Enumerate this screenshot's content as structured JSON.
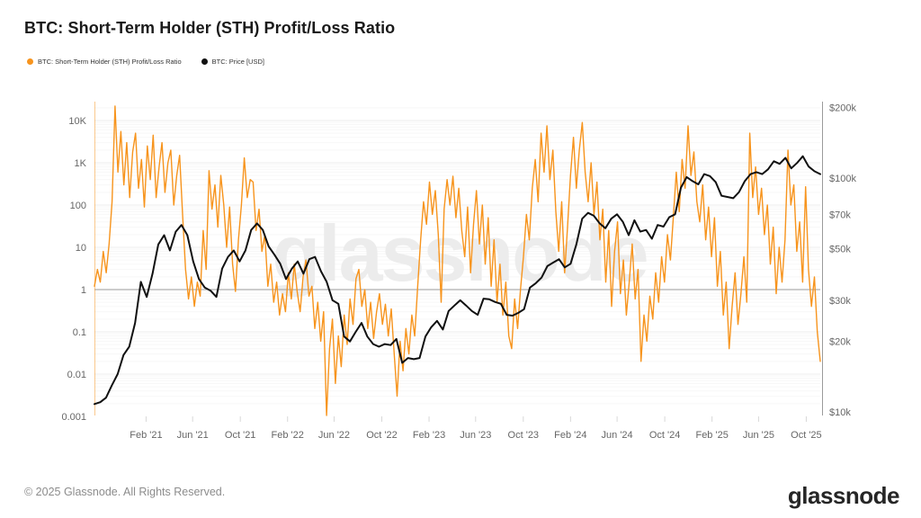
{
  "title": "BTC: Short-Term Holder (STH) Profit/Loss Ratio",
  "watermark": "glassnode",
  "legend": [
    {
      "label": "BTC: Short-Term Holder (STH) Profit/Loss Ratio",
      "color": "#f7941d"
    },
    {
      "label": "BTC: Price [USD]",
      "color": "#111111"
    }
  ],
  "footer": {
    "copyright": "© 2025 Glassnode. All Rights Reserved.",
    "logo": "glassnode"
  },
  "colors": {
    "accent": "#f7941d",
    "price": "#111111",
    "axis_text": "#666666",
    "grid_major": "#ececec",
    "grid_minor": "#f7f7f7",
    "reference": "#9a9a9a",
    "right_axis_line": "#9b9b9b",
    "x_tick_mark": "#d8d8d8",
    "watermark": "#ececec"
  },
  "chart_data": {
    "type": "line",
    "title": "BTC: Short-Term Holder (STH) Profit/Loss Ratio",
    "x_unit": "decimal_year",
    "x_range": [
      2020.72,
      2025.85
    ],
    "grid": "horizontal-log",
    "legend_position": "top-left",
    "x_ticks": [
      {
        "t": 2021.085,
        "label": "Feb '21"
      },
      {
        "t": 2021.414,
        "label": "Jun '21"
      },
      {
        "t": 2021.751,
        "label": "Oct '21"
      },
      {
        "t": 2022.085,
        "label": "Feb '22"
      },
      {
        "t": 2022.414,
        "label": "Jun '22"
      },
      {
        "t": 2022.751,
        "label": "Oct '22"
      },
      {
        "t": 2023.085,
        "label": "Feb '23"
      },
      {
        "t": 2023.414,
        "label": "Jun '23"
      },
      {
        "t": 2023.751,
        "label": "Oct '23"
      },
      {
        "t": 2024.085,
        "label": "Feb '24"
      },
      {
        "t": 2024.414,
        "label": "Jun '24"
      },
      {
        "t": 2024.751,
        "label": "Oct '24"
      },
      {
        "t": 2025.085,
        "label": "Feb '25"
      },
      {
        "t": 2025.414,
        "label": "Jun '25"
      },
      {
        "t": 2025.751,
        "label": "Oct '25"
      }
    ],
    "left_axis": {
      "scale": "log",
      "ylim": [
        0.00105,
        27980
      ],
      "ticks": [
        {
          "v": 10000,
          "label": "10K"
        },
        {
          "v": 1000,
          "label": "1K"
        },
        {
          "v": 100,
          "label": "100"
        },
        {
          "v": 10,
          "label": "10"
        },
        {
          "v": 1,
          "label": "1"
        },
        {
          "v": 0.1,
          "label": "0.1"
        },
        {
          "v": 0.01,
          "label": "0.01"
        },
        {
          "v": 0.001,
          "label": "0.001"
        }
      ]
    },
    "right_axis": {
      "scale": "log",
      "unit": "USD thousands",
      "ylim": [
        9.65,
        212.3
      ],
      "ticks": [
        {
          "v": 200,
          "label": "$200k"
        },
        {
          "v": 100,
          "label": "$100k"
        },
        {
          "v": 70,
          "label": "$70k"
        },
        {
          "v": 50,
          "label": "$50k"
        },
        {
          "v": 30,
          "label": "$30k"
        },
        {
          "v": 20,
          "label": "$20k"
        },
        {
          "v": 10,
          "label": "$10k"
        }
      ]
    },
    "reference_line": {
      "axis": "left",
      "value": 1
    },
    "series": [
      {
        "name": "BTC: Short-Term Holder (STH) Profit/Loss Ratio",
        "data_name": "sth-ratio-line",
        "axis": "left",
        "color": "#f7941d",
        "width": 1.4,
        "values": [
          1.2,
          3,
          1.5,
          8,
          2.5,
          12,
          120,
          22000,
          600,
          5500,
          300,
          3000,
          150,
          1800,
          5000,
          250,
          1200,
          90,
          2500,
          400,
          4500,
          150,
          800,
          3000,
          200,
          1000,
          2000,
          100,
          500,
          1500,
          60,
          3,
          0.6,
          2,
          0.4,
          1.5,
          0.7,
          25,
          3,
          650,
          80,
          300,
          30,
          500,
          100,
          10,
          90,
          4,
          0.9,
          15,
          100,
          1300,
          150,
          400,
          350,
          25,
          80,
          8,
          20,
          1.2,
          4,
          0.5,
          1.5,
          0.25,
          0.8,
          0.3,
          2.5,
          0.6,
          4,
          0.9,
          0.3,
          2,
          5,
          0.7,
          1.2,
          0.12,
          0.5,
          0.06,
          0.3,
          0.001,
          0.04,
          0.2,
          0.006,
          0.08,
          0.015,
          0.25,
          0.05,
          0.6,
          0.15,
          1.8,
          3,
          0.4,
          1,
          0.12,
          0.5,
          0.07,
          0.3,
          0.8,
          0.15,
          0.45,
          0.08,
          0.35,
          0.03,
          0.003,
          0.06,
          0.012,
          0.12,
          0.03,
          0.25,
          0.08,
          1.2,
          15,
          120,
          35,
          350,
          60,
          220,
          20,
          0.5,
          80,
          400,
          100,
          480,
          50,
          250,
          25,
          6,
          90,
          2.5,
          35,
          220,
          12,
          100,
          4,
          50,
          1.2,
          15,
          0.5,
          4,
          0.25,
          1.5,
          0.08,
          0.04,
          0.6,
          0.12,
          1,
          6,
          60,
          15,
          250,
          1200,
          120,
          5000,
          600,
          7500,
          400,
          2000,
          70,
          8,
          120,
          2.5,
          30,
          500,
          4000,
          250,
          2000,
          9000,
          600,
          120,
          1000,
          60,
          350,
          15,
          80,
          1.5,
          25,
          0.4,
          8,
          40,
          0.8,
          5,
          0.25,
          1.5,
          12,
          0.6,
          3,
          0.02,
          0.25,
          0.06,
          0.7,
          0.2,
          2.5,
          0.5,
          6,
          1.5,
          20,
          5,
          50,
          600,
          70,
          1200,
          250,
          7500,
          500,
          1800,
          120,
          40,
          300,
          15,
          90,
          6,
          50,
          1.2,
          8,
          0.25,
          1.5,
          0.04,
          0.4,
          2.5,
          0.15,
          0.8,
          6,
          0.5,
          5000,
          150,
          800,
          60,
          250,
          20,
          100,
          4,
          30,
          0.8,
          10,
          1.5,
          15,
          2000,
          100,
          300,
          8,
          40,
          1.5,
          270,
          3,
          0.4,
          2,
          0.1,
          0.02
        ]
      },
      {
        "name": "BTC: Price [USD]",
        "data_name": "btc-price-line",
        "axis": "right",
        "color": "#111111",
        "width": 2,
        "values": [
          10.8,
          11,
          11.5,
          13,
          14.5,
          17.5,
          19,
          24,
          36,
          31,
          39,
          52,
          57,
          49,
          59,
          63,
          57,
          44,
          37,
          34,
          33,
          31,
          41,
          46,
          49,
          44,
          49,
          60,
          64,
          60,
          51,
          47,
          43,
          37,
          41,
          44,
          39,
          45,
          46,
          40,
          36,
          30,
          29,
          21,
          20,
          22,
          24,
          21,
          19.5,
          19,
          19.5,
          19.3,
          20.5,
          16.2,
          17,
          16.8,
          17,
          21,
          23,
          24.5,
          22.5,
          27,
          28.5,
          30,
          28.5,
          27,
          26,
          30.5,
          30.3,
          29.5,
          29,
          26,
          25.8,
          26.5,
          27.5,
          34,
          35.5,
          37.5,
          42,
          43.5,
          45,
          41.5,
          43,
          52,
          67,
          71,
          69,
          64,
          61,
          67,
          70,
          65,
          57,
          66,
          59,
          60,
          55,
          63,
          62,
          68,
          70,
          91,
          101,
          97,
          94,
          104,
          102,
          96,
          84,
          83,
          82,
          87,
          97,
          104,
          106,
          104,
          109,
          118,
          115,
          122,
          110,
          116,
          124,
          112,
          107,
          104
        ]
      }
    ]
  }
}
